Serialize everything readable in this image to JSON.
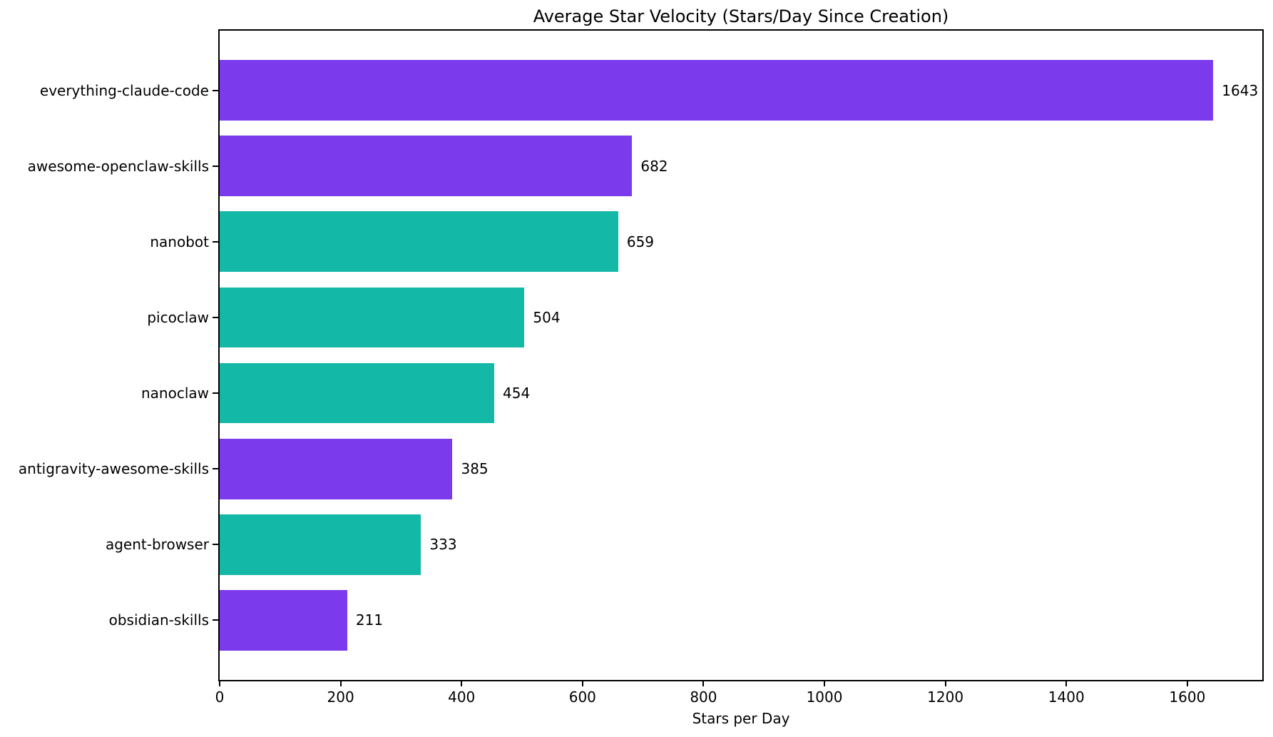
{
  "chart_data": {
    "type": "bar",
    "orientation": "horizontal",
    "title": "Average Star Velocity (Stars/Day Since Creation)",
    "xlabel": "Stars per Day",
    "ylabel": "",
    "categories": [
      "everything-claude-code",
      "awesome-openclaw-skills",
      "nanobot",
      "picoclaw",
      "nanoclaw",
      "antigravity-awesome-skills",
      "agent-browser",
      "obsidian-skills"
    ],
    "values": [
      1643,
      682,
      659,
      504,
      454,
      385,
      333,
      211
    ],
    "value_labels": [
      "1643",
      "682",
      "659",
      "504",
      "454",
      "385",
      "333",
      "211"
    ],
    "bar_color_keys": [
      "purple",
      "purple",
      "teal",
      "teal",
      "teal",
      "purple",
      "teal",
      "purple"
    ],
    "colors": {
      "purple": "#7C3AED",
      "teal": "#14B8A6",
      "axis": "#000000",
      "background": "#FFFFFF"
    },
    "xlim": [
      0,
      1724
    ],
    "xticks": [
      0,
      200,
      400,
      600,
      800,
      1000,
      1200,
      1400,
      1600
    ],
    "bar_height_fraction": 0.8,
    "grid": false,
    "legend": null
  }
}
